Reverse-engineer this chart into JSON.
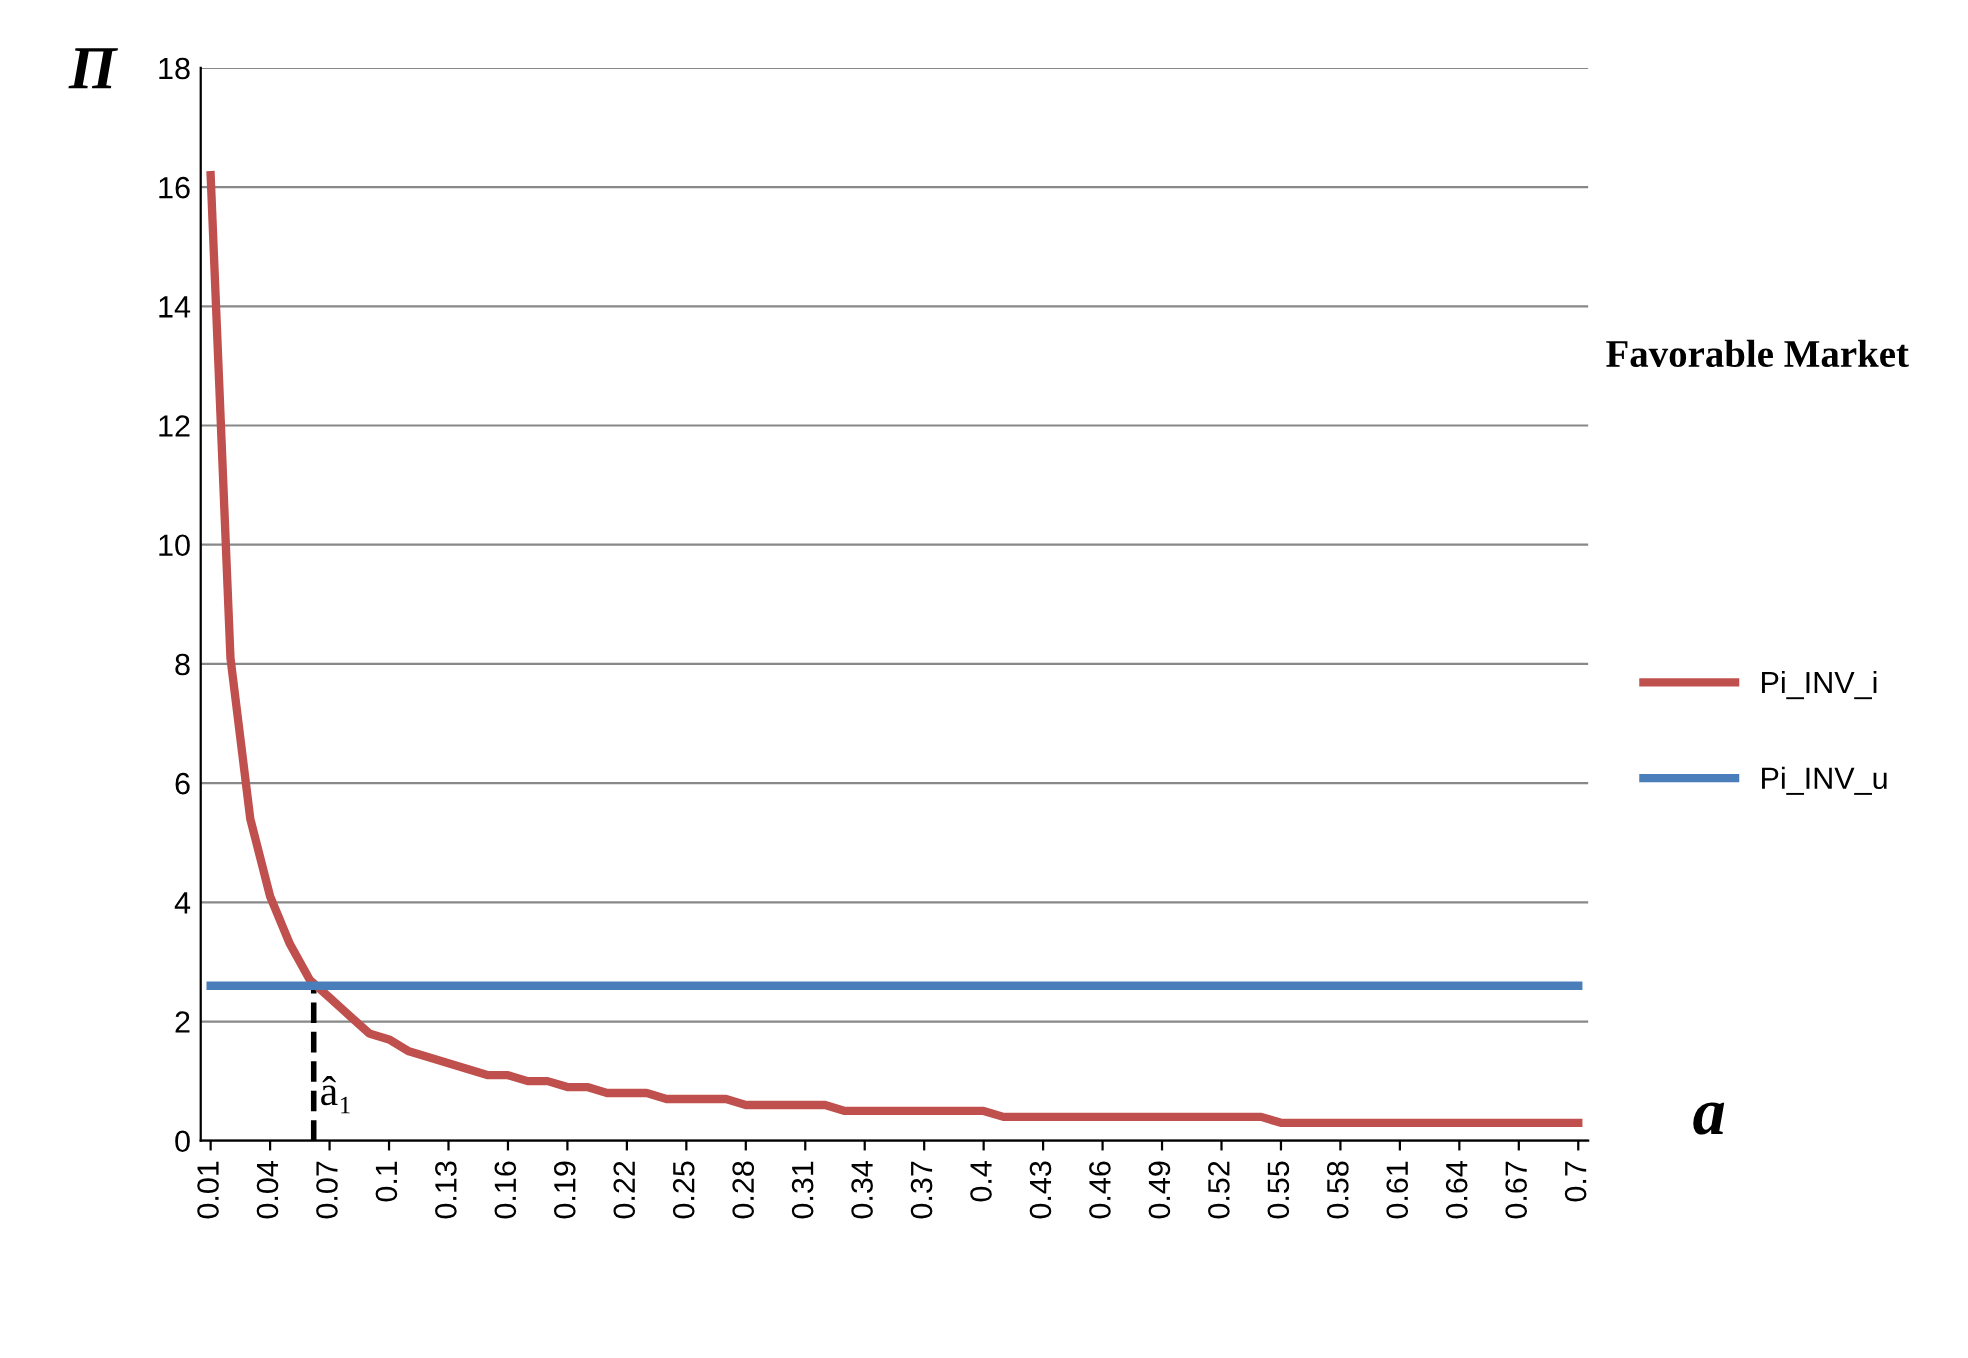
{
  "chart_data": {
    "type": "line",
    "title": "Favorable Market",
    "xlabel": "a",
    "ylabel": "Π",
    "x": [
      0.01,
      0.02,
      0.03,
      0.04,
      0.05,
      0.06,
      0.07,
      0.08,
      0.09,
      0.1,
      0.11,
      0.12,
      0.13,
      0.14,
      0.15,
      0.16,
      0.17,
      0.18,
      0.19,
      0.2,
      0.21,
      0.22,
      0.23,
      0.24,
      0.25,
      0.26,
      0.27,
      0.28,
      0.29,
      0.3,
      0.31,
      0.32,
      0.33,
      0.34,
      0.35,
      0.36,
      0.37,
      0.38,
      0.39,
      0.4,
      0.41,
      0.42,
      0.43,
      0.44,
      0.45,
      0.46,
      0.47,
      0.48,
      0.49,
      0.5,
      0.51,
      0.52,
      0.53,
      0.54,
      0.55,
      0.56,
      0.57,
      0.58,
      0.59,
      0.6,
      0.61,
      0.62,
      0.63,
      0.64,
      0.65,
      0.66,
      0.67,
      0.68,
      0.69,
      0.7
    ],
    "series": [
      {
        "name": "Pi_INV_i",
        "color": "#c0504d",
        "values": [
          16.2,
          8.1,
          5.4,
          4.1,
          3.3,
          2.7,
          2.4,
          2.1,
          1.8,
          1.7,
          1.5,
          1.4,
          1.3,
          1.2,
          1.1,
          1.1,
          1.0,
          1.0,
          0.9,
          0.9,
          0.8,
          0.8,
          0.8,
          0.7,
          0.7,
          0.7,
          0.7,
          0.6,
          0.6,
          0.6,
          0.6,
          0.6,
          0.5,
          0.5,
          0.5,
          0.5,
          0.5,
          0.5,
          0.5,
          0.5,
          0.4,
          0.4,
          0.4,
          0.4,
          0.4,
          0.4,
          0.4,
          0.4,
          0.4,
          0.4,
          0.4,
          0.4,
          0.4,
          0.4,
          0.3,
          0.3,
          0.3,
          0.3,
          0.3,
          0.3,
          0.3,
          0.3,
          0.3,
          0.3,
          0.3,
          0.3,
          0.3,
          0.3,
          0.3,
          0.3
        ]
      },
      {
        "name": "Pi_INV_u",
        "color": "#4a7ebb",
        "values": [
          2.6,
          2.6,
          2.6,
          2.6,
          2.6,
          2.6,
          2.6,
          2.6,
          2.6,
          2.6,
          2.6,
          2.6,
          2.6,
          2.6,
          2.6,
          2.6,
          2.6,
          2.6,
          2.6,
          2.6,
          2.6,
          2.6,
          2.6,
          2.6,
          2.6,
          2.6,
          2.6,
          2.6,
          2.6,
          2.6,
          2.6,
          2.6,
          2.6,
          2.6,
          2.6,
          2.6,
          2.6,
          2.6,
          2.6,
          2.6,
          2.6,
          2.6,
          2.6,
          2.6,
          2.6,
          2.6,
          2.6,
          2.6,
          2.6,
          2.6,
          2.6,
          2.6,
          2.6,
          2.6,
          2.6,
          2.6,
          2.6,
          2.6,
          2.6,
          2.6,
          2.6,
          2.6,
          2.6,
          2.6,
          2.6,
          2.6,
          2.6,
          2.6,
          2.6,
          2.6
        ]
      }
    ],
    "xlim": [
      0.005,
      0.705
    ],
    "xticks": [
      0.01,
      0.04,
      0.07,
      0.1,
      0.13,
      0.16,
      0.19,
      0.22,
      0.25,
      0.28,
      0.31,
      0.34,
      0.37,
      0.4,
      0.43,
      0.46,
      0.49,
      0.52,
      0.55,
      0.58,
      0.61,
      0.64,
      0.67,
      0.7
    ],
    "ylim": [
      0,
      18
    ],
    "yticks": [
      0,
      2,
      4,
      6,
      8,
      10,
      12,
      14,
      16,
      18
    ],
    "grid": "y",
    "legend": "right",
    "marker": "none",
    "line_style": "solid",
    "ref_lines": [
      {
        "axis": "x",
        "value": 0.062,
        "label": "â₁",
        "color": "#000000",
        "line_style": "dashed"
      }
    ]
  }
}
